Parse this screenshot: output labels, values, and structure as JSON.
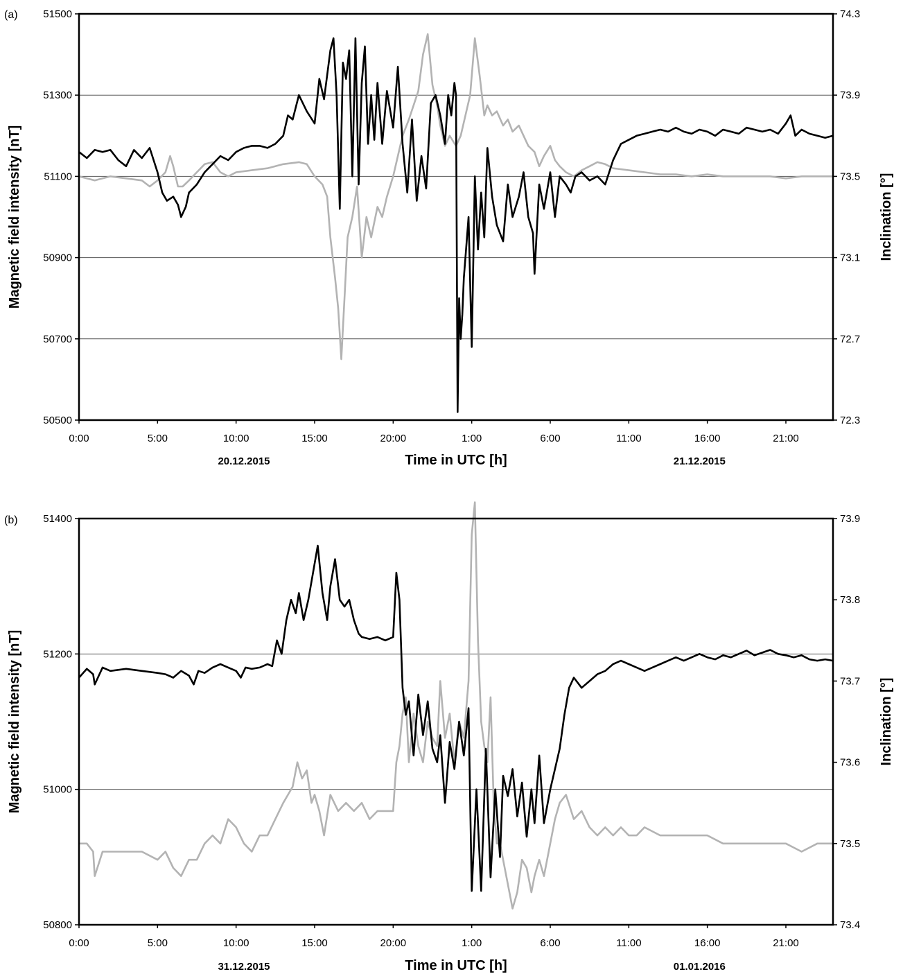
{
  "chart_data": [
    {
      "type": "line",
      "panel_label": "(a)",
      "xlabel": "Time in UTC [h]",
      "ylabel_left": "Magnetic field intensity [nT]",
      "ylabel_right": "Inclination [°]",
      "x_ticks": [
        "0:00",
        "5:00",
        "10:00",
        "15:00",
        "20:00",
        "1:00",
        "6:00",
        "11:00",
        "16:00",
        "21:00"
      ],
      "x_tick_hours": [
        0,
        5,
        10,
        15,
        20,
        25,
        30,
        35,
        40,
        45
      ],
      "xlim_hours": [
        0,
        48
      ],
      "dates": [
        {
          "label": "20.12.2015",
          "hour": 10.5
        },
        {
          "label": "21.12.2015",
          "hour": 39.5
        }
      ],
      "ylim_left": [
        50500,
        51500
      ],
      "y_ticks_left": [
        "50500",
        "50700",
        "50900",
        "51100",
        "51300",
        "51500"
      ],
      "ylim_right": [
        72.3,
        74.3
      ],
      "y_ticks_right": [
        "72.3",
        "72.7",
        "73.1",
        "73.5",
        "73.9",
        "74.3"
      ],
      "gridlines_left": [
        50700,
        50900,
        51100,
        51300
      ],
      "series": [
        {
          "role": "magnetic_field_intensity",
          "axis": "left",
          "color": "#000000",
          "x": [
            0,
            0.5,
            1,
            1.5,
            2,
            2.5,
            3,
            3.5,
            4,
            4.5,
            5,
            5.3,
            5.6,
            6,
            6.3,
            6.5,
            6.8,
            7,
            7.5,
            8,
            8.5,
            9,
            9.5,
            10,
            10.5,
            11,
            11.5,
            12,
            12.5,
            13,
            13.3,
            13.6,
            14,
            14.5,
            15,
            15.3,
            15.6,
            16,
            16.2,
            16.4,
            16.6,
            16.8,
            17,
            17.2,
            17.4,
            17.6,
            17.8,
            18,
            18.2,
            18.4,
            18.6,
            18.8,
            19,
            19.3,
            19.6,
            20,
            20.3,
            20.6,
            20.9,
            21.2,
            21.5,
            21.8,
            22.1,
            22.4,
            22.7,
            23,
            23.3,
            23.5,
            23.7,
            23.9,
            24,
            24.1,
            24.2,
            24.3,
            24.4,
            24.5,
            24.6,
            24.8,
            25,
            25.2,
            25.4,
            25.6,
            25.8,
            26,
            26.3,
            26.6,
            27,
            27.3,
            27.6,
            28,
            28.3,
            28.6,
            28.9,
            29,
            29.3,
            29.6,
            30,
            30.3,
            30.6,
            31,
            31.3,
            31.6,
            32,
            32.5,
            33,
            33.5,
            34,
            34.5,
            35,
            35.5,
            36,
            36.5,
            37,
            37.5,
            38,
            38.5,
            39,
            39.5,
            40,
            40.5,
            41,
            41.5,
            42,
            42.5,
            43,
            43.5,
            44,
            44.5,
            45,
            45.3,
            45.6,
            46,
            46.5,
            47,
            47.5,
            48
          ],
          "y": [
            51160,
            51145,
            51165,
            51160,
            51165,
            51140,
            51125,
            51165,
            51145,
            51170,
            51110,
            51060,
            51040,
            51050,
            51030,
            51000,
            51025,
            51060,
            51080,
            51110,
            51130,
            51150,
            51140,
            51160,
            51170,
            51175,
            51175,
            51170,
            51180,
            51200,
            51250,
            51240,
            51300,
            51260,
            51230,
            51340,
            51290,
            51410,
            51440,
            51300,
            51020,
            51380,
            51340,
            51410,
            51100,
            51440,
            51080,
            51330,
            51420,
            51180,
            51300,
            51190,
            51330,
            51180,
            51310,
            51220,
            51370,
            51180,
            51060,
            51240,
            51040,
            51150,
            51070,
            51280,
            51300,
            51250,
            51180,
            51300,
            51250,
            51330,
            51300,
            50520,
            50800,
            50700,
            50760,
            50850,
            50900,
            51000,
            50680,
            51100,
            50920,
            51060,
            50950,
            51170,
            51050,
            50980,
            50940,
            51080,
            51000,
            51050,
            51110,
            51000,
            50960,
            50860,
            51080,
            51020,
            51110,
            51000,
            51100,
            51080,
            51060,
            51100,
            51110,
            51090,
            51100,
            51080,
            51140,
            51180,
            51190,
            51200,
            51205,
            51210,
            51215,
            51210,
            51220,
            51210,
            51205,
            51215,
            51210,
            51200,
            51215,
            51210,
            51205,
            51220,
            51215,
            51210,
            51215,
            51205,
            51230,
            51250,
            51200,
            51215,
            51205,
            51200,
            51195,
            51200
          ]
        },
        {
          "role": "inclination",
          "axis": "right",
          "color": "#b3b3b3",
          "x": [
            0,
            1,
            2,
            3,
            4,
            4.5,
            5,
            5.5,
            5.8,
            6,
            6.3,
            6.6,
            7,
            7.5,
            8,
            8.5,
            9,
            9.5,
            10,
            11,
            12,
            13,
            14,
            14.5,
            15,
            15.5,
            15.8,
            16,
            16.3,
            16.5,
            16.7,
            16.9,
            17.1,
            17.4,
            17.7,
            18,
            18.3,
            18.6,
            19,
            19.3,
            19.6,
            20,
            20.3,
            20.6,
            21,
            21.3,
            21.6,
            21.9,
            22.2,
            22.5,
            22.8,
            23,
            23.3,
            23.6,
            24,
            24.3,
            24.6,
            24.9,
            25.2,
            25.5,
            25.8,
            26,
            26.3,
            26.6,
            27,
            27.3,
            27.6,
            28,
            28.3,
            28.6,
            29,
            29.3,
            29.6,
            30,
            30.3,
            30.6,
            31,
            31.5,
            32,
            32.5,
            33,
            33.5,
            34,
            35,
            36,
            37,
            38,
            39,
            40,
            41,
            42,
            43,
            44,
            45,
            46,
            47,
            48
          ],
          "y": [
            73.5,
            73.48,
            73.5,
            73.49,
            73.48,
            73.45,
            73.48,
            73.52,
            73.6,
            73.55,
            73.45,
            73.45,
            73.48,
            73.52,
            73.56,
            73.57,
            73.52,
            73.5,
            73.52,
            73.53,
            73.54,
            73.56,
            73.57,
            73.56,
            73.5,
            73.46,
            73.4,
            73.2,
            73.0,
            72.85,
            72.6,
            72.9,
            73.2,
            73.3,
            73.45,
            73.1,
            73.3,
            73.2,
            73.35,
            73.3,
            73.4,
            73.5,
            73.6,
            73.7,
            73.78,
            73.85,
            73.92,
            74.1,
            74.2,
            73.95,
            73.85,
            73.75,
            73.65,
            73.7,
            73.65,
            73.7,
            73.8,
            73.9,
            74.18,
            74.0,
            73.8,
            73.85,
            73.8,
            73.82,
            73.75,
            73.78,
            73.72,
            73.75,
            73.7,
            73.65,
            73.62,
            73.55,
            73.6,
            73.65,
            73.58,
            73.55,
            73.52,
            73.5,
            73.53,
            73.55,
            73.57,
            73.56,
            73.54,
            73.53,
            73.52,
            73.51,
            73.51,
            73.5,
            73.51,
            73.5,
            73.5,
            73.5,
            73.5,
            73.49,
            73.5,
            73.5,
            73.5
          ]
        }
      ]
    },
    {
      "type": "line",
      "panel_label": "(b)",
      "xlabel": "Time in UTC [h]",
      "ylabel_left": "Magnetic field intensity [nT]",
      "ylabel_right": "Inclination [°]",
      "x_ticks": [
        "0:00",
        "5:00",
        "10:00",
        "15:00",
        "20:00",
        "1:00",
        "6:00",
        "11:00",
        "16:00",
        "21:00"
      ],
      "x_tick_hours": [
        0,
        5,
        10,
        15,
        20,
        25,
        30,
        35,
        40,
        45
      ],
      "xlim_hours": [
        0,
        48
      ],
      "dates": [
        {
          "label": "31.12.2015",
          "hour": 10.5
        },
        {
          "label": "01.01.2016",
          "hour": 39.5
        }
      ],
      "ylim_left": [
        50800,
        51400
      ],
      "y_ticks_left": [
        "50800",
        "51000",
        "51200",
        "51400"
      ],
      "ylim_right": [
        73.4,
        73.9
      ],
      "y_ticks_right": [
        "73.4",
        "73.5",
        "73.6",
        "73.7",
        "73.8",
        "73.9"
      ],
      "gridlines_left": [
        51000,
        51200
      ],
      "series": [
        {
          "role": "magnetic_field_intensity",
          "axis": "left",
          "color": "#000000",
          "x": [
            0,
            0.5,
            0.9,
            1,
            1.5,
            2,
            3,
            4,
            5,
            5.5,
            6,
            6.5,
            7,
            7.3,
            7.6,
            8,
            8.5,
            9,
            9.5,
            10,
            10.3,
            10.6,
            11,
            11.5,
            12,
            12.3,
            12.6,
            12.9,
            13.2,
            13.5,
            13.8,
            14,
            14.3,
            14.6,
            14.9,
            15.2,
            15.5,
            15.8,
            16,
            16.3,
            16.6,
            16.9,
            17.2,
            17.5,
            17.8,
            18,
            18.5,
            19,
            19.5,
            20,
            20.2,
            20.4,
            20.6,
            20.8,
            21,
            21.3,
            21.6,
            21.9,
            22.2,
            22.5,
            22.8,
            23,
            23.3,
            23.6,
            23.9,
            24.2,
            24.5,
            24.8,
            25,
            25.3,
            25.6,
            25.9,
            26.2,
            26.5,
            26.8,
            27,
            27.3,
            27.6,
            27.9,
            28.2,
            28.5,
            28.8,
            29,
            29.3,
            29.6,
            30,
            30.3,
            30.6,
            30.9,
            31.2,
            31.5,
            32,
            32.5,
            33,
            33.5,
            34,
            34.5,
            35,
            35.5,
            36,
            36.5,
            37,
            37.5,
            38,
            38.5,
            39,
            39.5,
            40,
            40.5,
            41,
            41.5,
            42,
            42.5,
            43,
            43.5,
            44,
            44.5,
            45,
            45.5,
            46,
            46.5,
            47,
            47.5,
            48
          ],
          "y": [
            51165,
            51178,
            51170,
            51155,
            51180,
            51175,
            51178,
            51175,
            51172,
            51170,
            51165,
            51175,
            51168,
            51155,
            51175,
            51172,
            51180,
            51185,
            51180,
            51175,
            51165,
            51180,
            51178,
            51180,
            51185,
            51182,
            51220,
            51200,
            51250,
            51280,
            51260,
            51290,
            51250,
            51280,
            51320,
            51360,
            51290,
            51250,
            51300,
            51340,
            51280,
            51270,
            51280,
            51250,
            51230,
            51225,
            51222,
            51225,
            51220,
            51225,
            51320,
            51280,
            51150,
            51110,
            51130,
            51050,
            51140,
            51080,
            51130,
            51060,
            51040,
            51080,
            50980,
            51070,
            51030,
            51100,
            51050,
            51120,
            50850,
            51000,
            50850,
            51060,
            50870,
            51000,
            50900,
            51020,
            50990,
            51030,
            50960,
            51010,
            50930,
            51000,
            50950,
            51050,
            50950,
            51000,
            51030,
            51060,
            51110,
            51150,
            51165,
            51150,
            51160,
            51170,
            51175,
            51185,
            51190,
            51185,
            51180,
            51175,
            51180,
            51185,
            51190,
            51195,
            51190,
            51195,
            51200,
            51195,
            51192,
            51198,
            51195,
            51200,
            51205,
            51198,
            51202,
            51206,
            51200,
            51198,
            51195,
            51198,
            51192,
            51190,
            51192,
            51190
          ]
        },
        {
          "role": "inclination",
          "axis": "right",
          "color": "#b3b3b3",
          "x": [
            0,
            0.5,
            0.9,
            1,
            1.5,
            2,
            3,
            4,
            5,
            5.5,
            6,
            6.5,
            7,
            7.5,
            8,
            8.5,
            9,
            9.5,
            10,
            10.5,
            11,
            11.5,
            12,
            12.5,
            13,
            13.3,
            13.6,
            13.9,
            14.2,
            14.5,
            14.8,
            15,
            15.3,
            15.6,
            16,
            16.5,
            17,
            17.5,
            18,
            18.5,
            19,
            19.5,
            20,
            20.2,
            20.4,
            20.6,
            20.8,
            21,
            21.3,
            21.6,
            21.9,
            22.2,
            22.5,
            22.8,
            23,
            23.3,
            23.6,
            23.9,
            24.2,
            24.5,
            24.8,
            25,
            25.2,
            25.4,
            25.6,
            25.8,
            26,
            26.2,
            26.4,
            26.6,
            26.8,
            27,
            27.3,
            27.6,
            27.9,
            28.2,
            28.5,
            28.8,
            29,
            29.3,
            29.6,
            30,
            30.3,
            30.6,
            31,
            31.5,
            32,
            32.5,
            33,
            33.5,
            34,
            34.5,
            35,
            35.5,
            36,
            37,
            38,
            39,
            40,
            41,
            42,
            43,
            44,
            45,
            46,
            47,
            48
          ],
          "y": [
            73.5,
            73.5,
            73.49,
            73.46,
            73.49,
            73.49,
            73.49,
            73.49,
            73.48,
            73.49,
            73.47,
            73.46,
            73.48,
            73.48,
            73.5,
            73.51,
            73.5,
            73.53,
            73.52,
            73.5,
            73.49,
            73.51,
            73.51,
            73.53,
            73.55,
            73.56,
            73.57,
            73.6,
            73.58,
            73.59,
            73.55,
            73.56,
            73.54,
            73.51,
            73.56,
            73.54,
            73.55,
            73.54,
            73.55,
            73.53,
            73.54,
            73.54,
            73.54,
            73.6,
            73.62,
            73.66,
            73.68,
            73.6,
            73.66,
            73.62,
            73.6,
            73.65,
            73.63,
            73.62,
            73.7,
            73.63,
            73.66,
            73.6,
            73.65,
            73.63,
            73.7,
            73.88,
            73.92,
            73.75,
            73.65,
            73.62,
            73.6,
            73.68,
            73.55,
            73.5,
            73.5,
            73.48,
            73.45,
            73.42,
            73.44,
            73.48,
            73.47,
            73.44,
            73.46,
            73.48,
            73.46,
            73.5,
            73.53,
            73.55,
            73.56,
            73.53,
            73.54,
            73.52,
            73.51,
            73.52,
            73.51,
            73.52,
            73.51,
            73.51,
            73.52,
            73.51,
            73.51,
            73.51,
            73.51,
            73.5,
            73.5,
            73.5,
            73.5,
            73.5,
            73.49,
            73.5,
            73.5
          ]
        }
      ]
    }
  ]
}
